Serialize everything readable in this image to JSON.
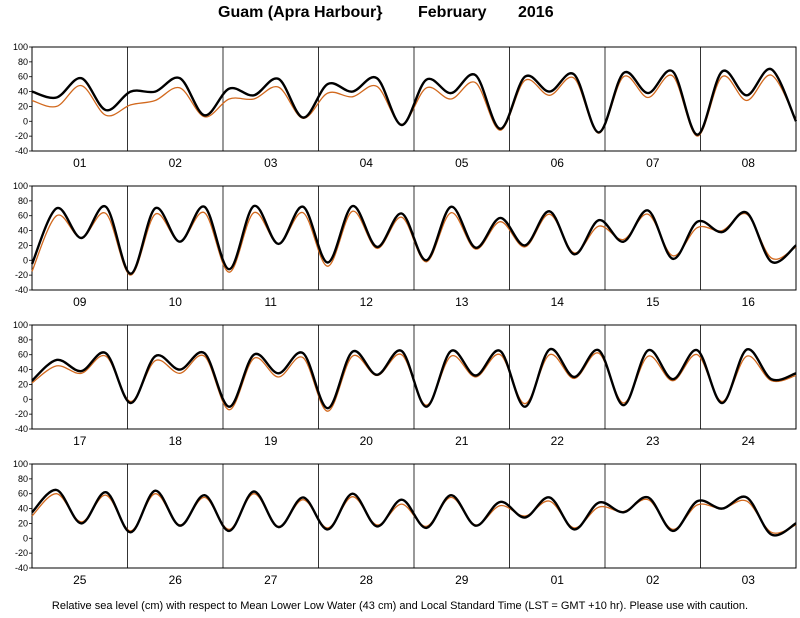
{
  "title": {
    "station": "Guam (Apra Harbour}",
    "month": "February",
    "year": "2016"
  },
  "caption": "Relative sea level (cm) with respect to Mean Lower Low Water (43 cm) and Local Standard Time (LST = GMT +10 hr). Please use with caution.",
  "colors": {
    "observed": "#000000",
    "predicted": "#d2691e",
    "grid": "#000000"
  },
  "chart_data": {
    "type": "line",
    "ylim": [
      -40,
      100
    ],
    "yticks": [
      -40,
      -20,
      0,
      20,
      40,
      60,
      80,
      100
    ],
    "grid": "vertical day separators",
    "series": [],
    "panels": [
      {
        "days": [
          "01",
          "02",
          "03",
          "04",
          "05",
          "06",
          "07",
          "08"
        ],
        "observed": [
          40,
          32,
          58,
          15,
          40,
          40,
          58,
          8,
          44,
          35,
          57,
          5,
          50,
          40,
          58,
          -5,
          56,
          38,
          62,
          -10,
          60,
          40,
          63,
          -15,
          65,
          38,
          67,
          -18,
          67,
          35,
          70,
          0
        ],
        "predicted": [
          28,
          20,
          48,
          8,
          22,
          28,
          45,
          6,
          30,
          30,
          46,
          4,
          38,
          33,
          47,
          -4,
          45,
          30,
          52,
          -12,
          55,
          35,
          58,
          -16,
          60,
          32,
          61,
          -20,
          60,
          28,
          62,
          2
        ]
      },
      {
        "days": [
          "09",
          "10",
          "11",
          "12",
          "13",
          "14",
          "15",
          "16"
        ],
        "observed": [
          -5,
          70,
          30,
          72,
          -18,
          70,
          25,
          72,
          -12,
          73,
          22,
          72,
          -3,
          73,
          18,
          63,
          0,
          72,
          17,
          57,
          20,
          66,
          8,
          54,
          25,
          67,
          2,
          52,
          38,
          64,
          -2,
          20
        ],
        "predicted": [
          -15,
          60,
          30,
          63,
          -20,
          62,
          25,
          64,
          -16,
          64,
          22,
          64,
          -8,
          66,
          16,
          58,
          -2,
          64,
          15,
          52,
          18,
          62,
          10,
          46,
          28,
          62,
          6,
          44,
          40,
          62,
          3,
          18
        ]
      },
      {
        "days": [
          "17",
          "18",
          "19",
          "20",
          "21",
          "22",
          "23",
          "24"
        ],
        "observed": [
          25,
          53,
          38,
          62,
          -5,
          58,
          40,
          62,
          -10,
          60,
          35,
          62,
          -12,
          64,
          33,
          65,
          -10,
          65,
          32,
          65,
          -10,
          67,
          30,
          66,
          -8,
          66,
          27,
          66,
          -5,
          67,
          27,
          35
        ],
        "predicted": [
          22,
          45,
          35,
          58,
          -3,
          52,
          35,
          58,
          -14,
          55,
          30,
          56,
          -16,
          58,
          32,
          60,
          -8,
          58,
          30,
          60,
          -6,
          60,
          28,
          62,
          -5,
          58,
          25,
          60,
          -3,
          58,
          25,
          32
        ]
      },
      {
        "days": [
          "25",
          "26",
          "27",
          "28",
          "29",
          "01",
          "02",
          "03"
        ],
        "observed": [
          35,
          65,
          20,
          62,
          8,
          64,
          17,
          58,
          10,
          63,
          15,
          55,
          12,
          60,
          16,
          52,
          14,
          58,
          17,
          49,
          28,
          55,
          12,
          48,
          35,
          55,
          10,
          50,
          40,
          55,
          5,
          20
        ],
        "predicted": [
          30,
          60,
          22,
          58,
          10,
          60,
          18,
          55,
          12,
          60,
          16,
          52,
          14,
          56,
          18,
          46,
          16,
          55,
          18,
          44,
          30,
          50,
          14,
          42,
          36,
          52,
          12,
          45,
          40,
          50,
          8,
          18
        ]
      }
    ]
  }
}
